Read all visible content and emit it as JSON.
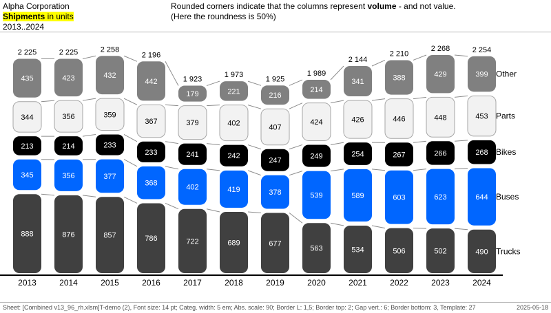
{
  "header": {
    "company": "Alpha Corporation",
    "measure": "Shipments",
    "unit": " in units",
    "period": "2013..2024",
    "note_line1_pre": "Rounded corners indicate that the columns represent ",
    "note_line1_bold": "volume",
    "note_line1_post": " - and not value.",
    "note_line2": "(Here the roundness is 50%)"
  },
  "footer": {
    "text": "Sheet: [Combined v13_96_rh.xlsm]T-demo (2), Font size: 14 pt; Categ. width: 5 em; Abs. scale: 90; Border L: 1,5; Border top: 2; Gap vert.: 6; Border bottom: 3, Template: 27",
    "date": "2025-05-18"
  },
  "chart_data": {
    "type": "bar",
    "stacked": true,
    "title": "Shipments in units",
    "categories": [
      "2013",
      "2014",
      "2015",
      "2016",
      "2017",
      "2018",
      "2019",
      "2020",
      "2021",
      "2022",
      "2023",
      "2024"
    ],
    "series": [
      {
        "name": "Trucks",
        "color": "#404040",
        "label_color": "#ffffff",
        "values": [
          888,
          876,
          857,
          786,
          722,
          689,
          677,
          563,
          534,
          506,
          502,
          490
        ],
        "labels": [
          "888",
          "876",
          "857",
          "786",
          "722",
          "689",
          "677",
          "563",
          "534",
          "506",
          "502",
          "490"
        ]
      },
      {
        "name": "Buses",
        "color": "#0066ff",
        "label_color": "#ffffff",
        "values": [
          345,
          356,
          377,
          368,
          402,
          419,
          378,
          539,
          589,
          603,
          623,
          644
        ],
        "labels": [
          "345",
          "356",
          "377",
          "368",
          "402",
          "419",
          "378",
          "539",
          "589",
          "603",
          "623",
          "644"
        ]
      },
      {
        "name": "Bikes",
        "color": "#000000",
        "label_color": "#ffffff",
        "values": [
          213,
          214,
          233,
          233,
          241,
          242,
          247,
          249,
          254,
          267,
          266,
          268
        ],
        "labels": [
          "213",
          "214",
          "233",
          "233",
          "241",
          "242",
          "247",
          "249",
          "254",
          "267",
          "266",
          "268"
        ]
      },
      {
        "name": "Parts",
        "color": "#f2f2f2",
        "label_color": "#000000",
        "values": [
          344,
          356,
          359,
          367,
          379,
          402,
          407,
          424,
          426,
          446,
          448,
          453
        ],
        "labels": [
          "344",
          "356",
          "359",
          "367",
          "379",
          "402",
          "407",
          "424",
          "426",
          "446",
          "448",
          "453"
        ]
      },
      {
        "name": "Other",
        "color": "#808080",
        "label_color": "#ffffff",
        "values": [
          435,
          423,
          432,
          442,
          179,
          221,
          216,
          214,
          341,
          388,
          429,
          399
        ],
        "labels": [
          "435",
          "423",
          "432",
          "442",
          "179",
          "221",
          "216",
          "214",
          "341",
          "388",
          "429",
          "399"
        ]
      }
    ],
    "totals": [
      2225,
      2225,
      2258,
      2196,
      1923,
      1973,
      1925,
      1989,
      2144,
      2210,
      2268,
      2254
    ],
    "total_labels": [
      "2 225",
      "2 225",
      "2 258",
      "2 196",
      "1 923",
      "1 973",
      "1 925",
      "1 989",
      "2 144",
      "2 210",
      "2 268",
      "2 254"
    ],
    "legend_position": "right",
    "roundness": "50%"
  }
}
